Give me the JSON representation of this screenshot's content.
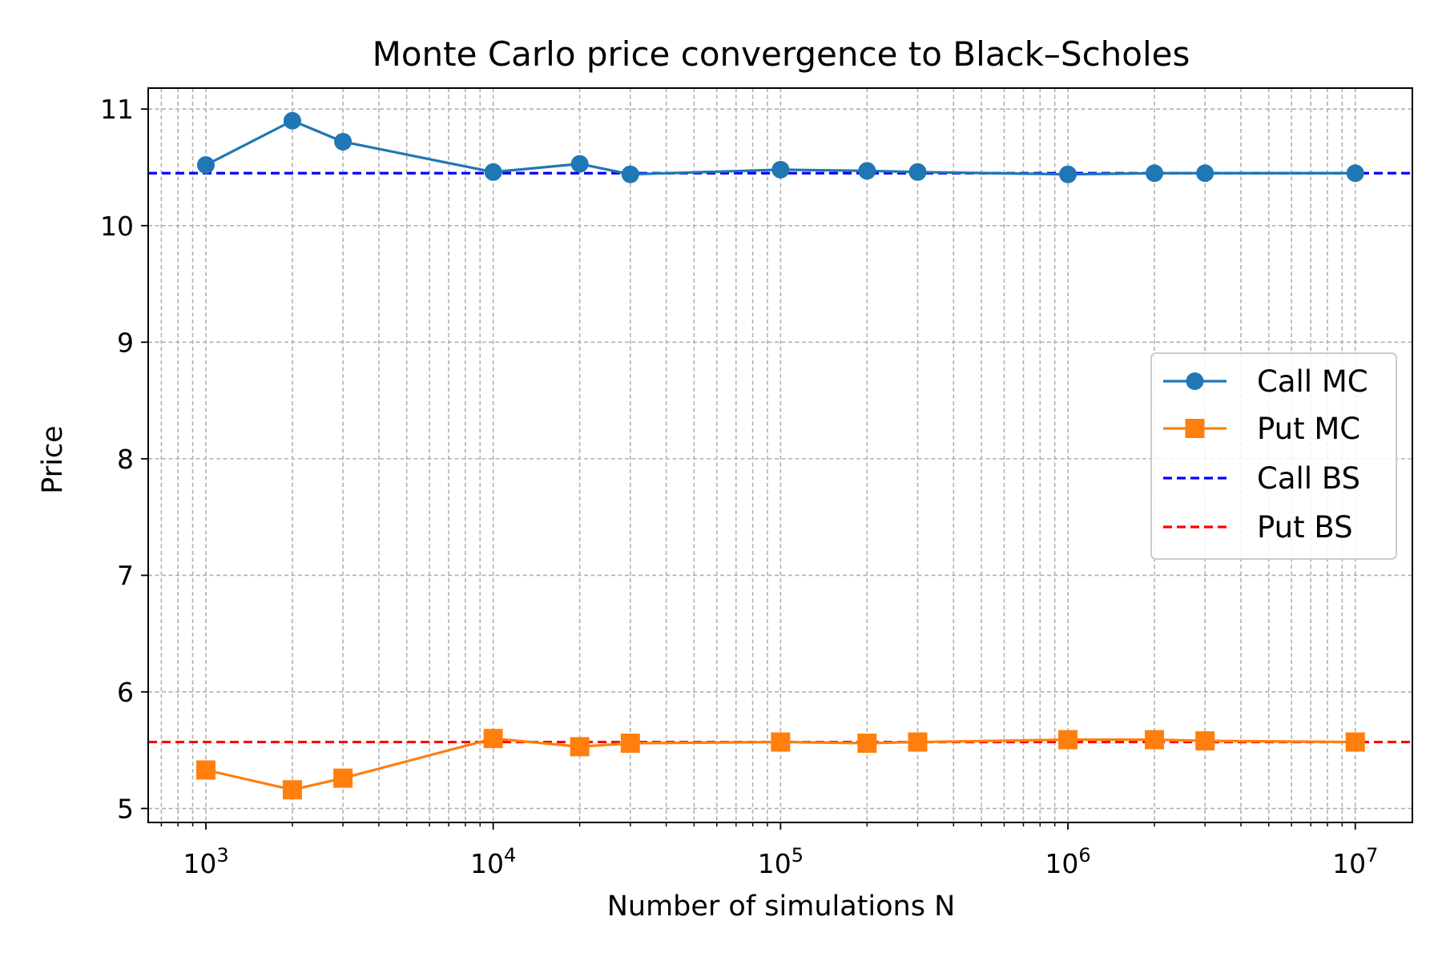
{
  "chart_data": {
    "type": "line",
    "title": "Monte Carlo price convergence to Black–Scholes",
    "xlabel": "Number of simulations N",
    "ylabel": "Price",
    "xscale": "log",
    "xlim": [
      630,
      15800000
    ],
    "ylim": [
      4.88,
      11.18
    ],
    "grid": true,
    "grid_minor": true,
    "legend_position": "center-right",
    "x": [
      1000,
      2000,
      3000,
      10000,
      20000,
      30000,
      100000,
      200000,
      300000,
      1000000,
      2000000,
      3000000,
      10000000
    ],
    "series": [
      {
        "name": "Call MC",
        "color": "#1f77b4",
        "marker": "circle",
        "style": "solid",
        "values": [
          10.52,
          10.9,
          10.72,
          10.46,
          10.53,
          10.44,
          10.48,
          10.47,
          10.46,
          10.44,
          10.45,
          10.45,
          10.45
        ]
      },
      {
        "name": "Put MC",
        "color": "#ff7f0e",
        "marker": "square",
        "style": "solid",
        "values": [
          5.33,
          5.16,
          5.26,
          5.6,
          5.53,
          5.56,
          5.57,
          5.56,
          5.57,
          5.59,
          5.59,
          5.58,
          5.57
        ]
      },
      {
        "name": "Call BS",
        "color": "#0000ff",
        "style": "dashed",
        "constant": 10.45
      },
      {
        "name": "Put BS",
        "color": "#ff0000",
        "style": "dashed",
        "constant": 5.57
      }
    ],
    "xticks": [
      {
        "value": 1000,
        "base": "10",
        "exp": "3"
      },
      {
        "value": 10000,
        "base": "10",
        "exp": "4"
      },
      {
        "value": 100000,
        "base": "10",
        "exp": "5"
      },
      {
        "value": 1000000,
        "base": "10",
        "exp": "6"
      },
      {
        "value": 10000000,
        "base": "10",
        "exp": "7"
      }
    ],
    "yticks": [
      {
        "value": 5,
        "label": "5"
      },
      {
        "value": 6,
        "label": "6"
      },
      {
        "value": 7,
        "label": "7"
      },
      {
        "value": 8,
        "label": "8"
      },
      {
        "value": 9,
        "label": "9"
      },
      {
        "value": 10,
        "label": "10"
      },
      {
        "value": 11,
        "label": "11"
      }
    ]
  }
}
